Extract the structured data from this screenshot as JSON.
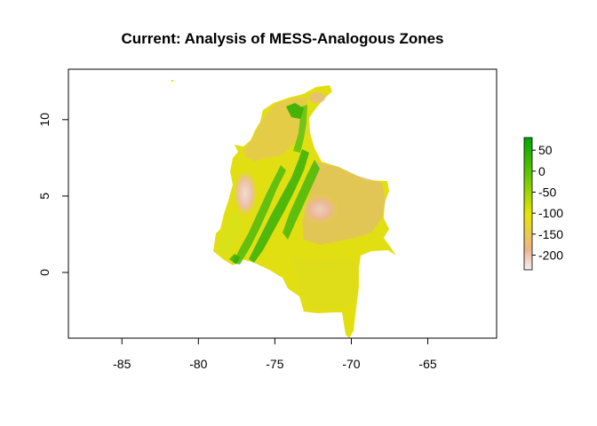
{
  "chart_data": {
    "type": "heatmap",
    "title": "Current: Analysis of MESS-Analogous Zones",
    "xlabel": "",
    "ylabel": "",
    "xlim": [
      -88.5,
      -60.5
    ],
    "ylim": [
      -4.3,
      13.3
    ],
    "x_ticks": [
      -85,
      -80,
      -75,
      -70,
      -65
    ],
    "y_ticks": [
      0,
      5,
      10
    ],
    "x_tick_labels": [
      "-85",
      "-80",
      "-75",
      "-70",
      "-65"
    ],
    "y_tick_labels": [
      "0",
      "5",
      "10"
    ],
    "legend": {
      "placement": "right",
      "range": [
        -235,
        80
      ],
      "ticks": [
        50,
        0,
        -50,
        -100,
        -150,
        -200
      ],
      "tick_labels": [
        "50",
        "0",
        "-50",
        "-100",
        "-150",
        "-200"
      ],
      "colors": [
        "#f2f2f2",
        "#edb48e",
        "#e6e600",
        "#63c600",
        "#00a600"
      ]
    }
  }
}
